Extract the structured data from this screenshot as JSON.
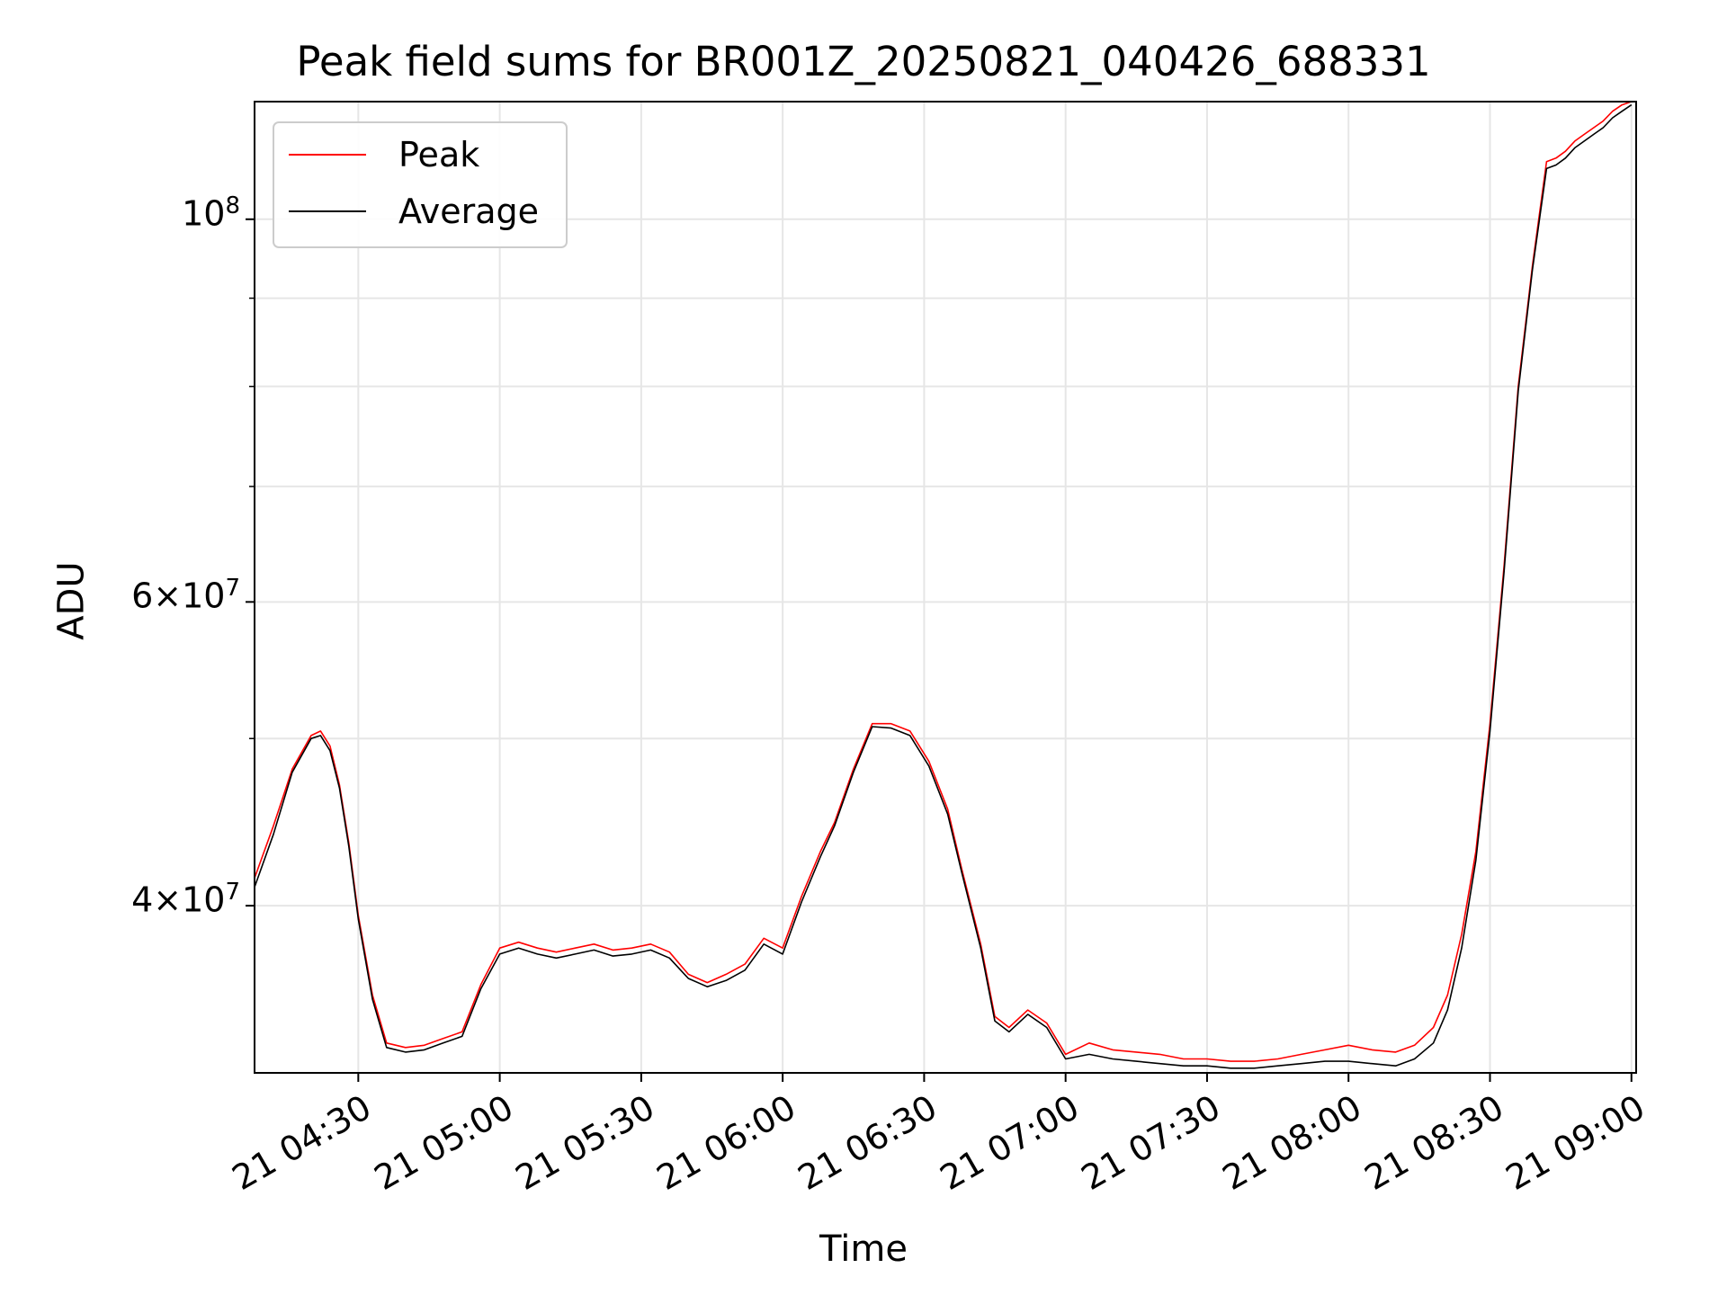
{
  "chart_data": {
    "type": "line",
    "title": "Peak field sums for BR001Z_20250821_040426_688331",
    "xlabel": "Time",
    "ylabel": "ADU",
    "y_scale": "log",
    "ylim": [
      32000000,
      117000000
    ],
    "xlim": [
      "2025-08-21 04:08",
      "2025-08-21 09:01"
    ],
    "grid": true,
    "legend_position": "upper-left",
    "x_ticks": [
      "21 04:30",
      "21 05:00",
      "21 05:30",
      "21 06:00",
      "21 06:30",
      "21 07:00",
      "21 07:30",
      "21 08:00",
      "21 08:30",
      "21 09:00"
    ],
    "y_ticks": [
      {
        "value": 40000000,
        "mantissa": "4",
        "exponent": "7"
      },
      {
        "value": 60000000,
        "mantissa": "6",
        "exponent": "7"
      },
      {
        "value": 100000000,
        "mantissa": "",
        "exponent": "8"
      }
    ],
    "series": [
      {
        "name": "Peak",
        "color": "#ff0000",
        "x": [
          "2025-08-21 04:08",
          "2025-08-21 04:12",
          "2025-08-21 04:16",
          "2025-08-21 04:20",
          "2025-08-21 04:22",
          "2025-08-21 04:24",
          "2025-08-21 04:26",
          "2025-08-21 04:28",
          "2025-08-21 04:30",
          "2025-08-21 04:33",
          "2025-08-21 04:36",
          "2025-08-21 04:40",
          "2025-08-21 04:44",
          "2025-08-21 04:48",
          "2025-08-21 04:52",
          "2025-08-21 04:56",
          "2025-08-21 05:00",
          "2025-08-21 05:04",
          "2025-08-21 05:08",
          "2025-08-21 05:12",
          "2025-08-21 05:16",
          "2025-08-21 05:20",
          "2025-08-21 05:24",
          "2025-08-21 05:28",
          "2025-08-21 05:32",
          "2025-08-21 05:36",
          "2025-08-21 05:40",
          "2025-08-21 05:44",
          "2025-08-21 05:48",
          "2025-08-21 05:52",
          "2025-08-21 05:56",
          "2025-08-21 06:00",
          "2025-08-21 06:04",
          "2025-08-21 06:08",
          "2025-08-21 06:11",
          "2025-08-21 06:15",
          "2025-08-21 06:19",
          "2025-08-21 06:23",
          "2025-08-21 06:27",
          "2025-08-21 06:31",
          "2025-08-21 06:35",
          "2025-08-21 06:38",
          "2025-08-21 06:42",
          "2025-08-21 06:45",
          "2025-08-21 06:48",
          "2025-08-21 06:52",
          "2025-08-21 06:56",
          "2025-08-21 07:00",
          "2025-08-21 07:05",
          "2025-08-21 07:10",
          "2025-08-21 07:15",
          "2025-08-21 07:20",
          "2025-08-21 07:25",
          "2025-08-21 07:30",
          "2025-08-21 07:35",
          "2025-08-21 07:40",
          "2025-08-21 07:45",
          "2025-08-21 07:50",
          "2025-08-21 07:55",
          "2025-08-21 08:00",
          "2025-08-21 08:05",
          "2025-08-21 08:10",
          "2025-08-21 08:14",
          "2025-08-21 08:18",
          "2025-08-21 08:21",
          "2025-08-21 08:24",
          "2025-08-21 08:27",
          "2025-08-21 08:30",
          "2025-08-21 08:33",
          "2025-08-21 08:36",
          "2025-08-21 08:39",
          "2025-08-21 08:42",
          "2025-08-21 08:44",
          "2025-08-21 08:46",
          "2025-08-21 08:48",
          "2025-08-21 08:50",
          "2025-08-21 08:52",
          "2025-08-21 08:54",
          "2025-08-21 08:56",
          "2025-08-21 08:58",
          "2025-08-21 09:00"
        ],
        "values": [
          41500000,
          44500000,
          48000000,
          50200000,
          50500000,
          49500000,
          47000000,
          43500000,
          39500000,
          35500000,
          33300000,
          33100000,
          33200000,
          33500000,
          33800000,
          36000000,
          37800000,
          38100000,
          37800000,
          37600000,
          37800000,
          38000000,
          37700000,
          37800000,
          38000000,
          37600000,
          36500000,
          36100000,
          36500000,
          37000000,
          38300000,
          37800000,
          40500000,
          43000000,
          44700000,
          48000000,
          51000000,
          51000000,
          50500000,
          48500000,
          45500000,
          42000000,
          38000000,
          34500000,
          34000000,
          34800000,
          34200000,
          32800000,
          33300000,
          33000000,
          32900000,
          32800000,
          32600000,
          32600000,
          32500000,
          32500000,
          32600000,
          32800000,
          33000000,
          33200000,
          33000000,
          32900000,
          33200000,
          34000000,
          35500000,
          38500000,
          43000000,
          51000000,
          63000000,
          80000000,
          94000000,
          108000000,
          108500000,
          109500000,
          111000000,
          112000000,
          113000000,
          114000000,
          115500000,
          116500000,
          117000000
        ]
      },
      {
        "name": "Average",
        "color": "#000000",
        "x": [
          "2025-08-21 04:08",
          "2025-08-21 04:12",
          "2025-08-21 04:16",
          "2025-08-21 04:20",
          "2025-08-21 04:22",
          "2025-08-21 04:24",
          "2025-08-21 04:26",
          "2025-08-21 04:28",
          "2025-08-21 04:30",
          "2025-08-21 04:33",
          "2025-08-21 04:36",
          "2025-08-21 04:40",
          "2025-08-21 04:44",
          "2025-08-21 04:48",
          "2025-08-21 04:52",
          "2025-08-21 04:56",
          "2025-08-21 05:00",
          "2025-08-21 05:04",
          "2025-08-21 05:08",
          "2025-08-21 05:12",
          "2025-08-21 05:16",
          "2025-08-21 05:20",
          "2025-08-21 05:24",
          "2025-08-21 05:28",
          "2025-08-21 05:32",
          "2025-08-21 05:36",
          "2025-08-21 05:40",
          "2025-08-21 05:44",
          "2025-08-21 05:48",
          "2025-08-21 05:52",
          "2025-08-21 05:56",
          "2025-08-21 06:00",
          "2025-08-21 06:04",
          "2025-08-21 06:08",
          "2025-08-21 06:11",
          "2025-08-21 06:15",
          "2025-08-21 06:19",
          "2025-08-21 06:23",
          "2025-08-21 06:27",
          "2025-08-21 06:31",
          "2025-08-21 06:35",
          "2025-08-21 06:38",
          "2025-08-21 06:42",
          "2025-08-21 06:45",
          "2025-08-21 06:48",
          "2025-08-21 06:52",
          "2025-08-21 06:56",
          "2025-08-21 07:00",
          "2025-08-21 07:05",
          "2025-08-21 07:10",
          "2025-08-21 07:15",
          "2025-08-21 07:20",
          "2025-08-21 07:25",
          "2025-08-21 07:30",
          "2025-08-21 07:35",
          "2025-08-21 07:40",
          "2025-08-21 07:45",
          "2025-08-21 07:50",
          "2025-08-21 07:55",
          "2025-08-21 08:00",
          "2025-08-21 08:05",
          "2025-08-21 08:10",
          "2025-08-21 08:14",
          "2025-08-21 08:18",
          "2025-08-21 08:21",
          "2025-08-21 08:24",
          "2025-08-21 08:27",
          "2025-08-21 08:30",
          "2025-08-21 08:33",
          "2025-08-21 08:36",
          "2025-08-21 08:39",
          "2025-08-21 08:42",
          "2025-08-21 08:44",
          "2025-08-21 08:46",
          "2025-08-21 08:48",
          "2025-08-21 08:50",
          "2025-08-21 08:52",
          "2025-08-21 08:54",
          "2025-08-21 08:56",
          "2025-08-21 08:58",
          "2025-08-21 09:00"
        ],
        "values": [
          41000000,
          44000000,
          47800000,
          50000000,
          50200000,
          49200000,
          46800000,
          43300000,
          39300000,
          35300000,
          33100000,
          32900000,
          33000000,
          33300000,
          33600000,
          35800000,
          37500000,
          37800000,
          37500000,
          37300000,
          37500000,
          37700000,
          37400000,
          37500000,
          37700000,
          37300000,
          36300000,
          35900000,
          36200000,
          36700000,
          38000000,
          37500000,
          40200000,
          42700000,
          44500000,
          47800000,
          50800000,
          50700000,
          50200000,
          48200000,
          45200000,
          41800000,
          37800000,
          34300000,
          33800000,
          34600000,
          34000000,
          32600000,
          32800000,
          32600000,
          32500000,
          32400000,
          32300000,
          32300000,
          32200000,
          32200000,
          32300000,
          32400000,
          32500000,
          32500000,
          32400000,
          32300000,
          32600000,
          33300000,
          34800000,
          37800000,
          42500000,
          50500000,
          62500000,
          79500000,
          93500000,
          107000000,
          107500000,
          108500000,
          110000000,
          111000000,
          112000000,
          113000000,
          114500000,
          115500000,
          116500000
        ]
      }
    ]
  }
}
